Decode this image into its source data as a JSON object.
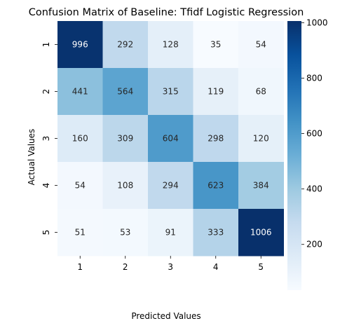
{
  "chart_data": {
    "type": "heatmap",
    "title": "Confusion Matrix of Baseline: Tfidf Logistic Regression",
    "xlabel": "Predicted Values",
    "ylabel": "Actual Values",
    "x_categories": [
      "1",
      "2",
      "3",
      "4",
      "5"
    ],
    "y_categories": [
      "1",
      "2",
      "3",
      "4",
      "5"
    ],
    "values": [
      [
        996,
        292,
        128,
        35,
        54
      ],
      [
        441,
        564,
        315,
        119,
        68
      ],
      [
        160,
        309,
        604,
        298,
        120
      ],
      [
        54,
        108,
        294,
        623,
        384
      ],
      [
        51,
        53,
        91,
        333,
        1006
      ]
    ],
    "colormap": "Blues",
    "color_range": [
      35,
      1006
    ],
    "colorbar_ticks": [
      "200",
      "400",
      "600",
      "800",
      "1000"
    ],
    "colorbar_tick_values": [
      200,
      400,
      600,
      800,
      1000
    ]
  }
}
